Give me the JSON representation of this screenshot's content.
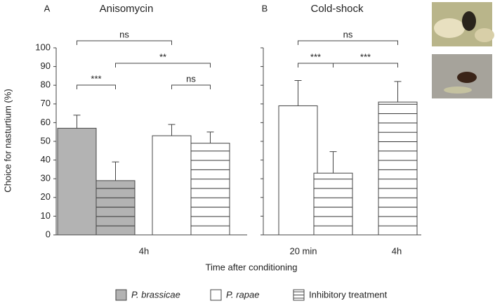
{
  "y_label": "Choice for nasturtium (%)",
  "x_label": "Time after conditioning",
  "legend": [
    {
      "label": "P. brassicae",
      "color": "#b3b3b3",
      "hatch": false
    },
    {
      "label": "P. rapae",
      "color": "#ffffff",
      "hatch": false
    },
    {
      "label": "Inhibitory treatment",
      "color": "#ffffff",
      "hatch": true
    }
  ],
  "chart_data": [
    {
      "type": "bar",
      "panel": "A",
      "title": "Anisomycin",
      "categories": [
        "4h"
      ],
      "ylim": [
        0,
        100
      ],
      "yticks": [
        0,
        10,
        20,
        30,
        40,
        50,
        60,
        70,
        80,
        90,
        100
      ],
      "series": [
        {
          "color": "#b3b3b3",
          "hatch": false,
          "values": [
            57
          ],
          "errors": [
            7
          ]
        },
        {
          "color": "#b3b3b3",
          "hatch": true,
          "values": [
            29
          ],
          "errors": [
            10
          ]
        },
        {
          "color": "#ffffff",
          "hatch": false,
          "values": [
            53
          ],
          "errors": [
            6
          ]
        },
        {
          "color": "#ffffff",
          "hatch": true,
          "values": [
            49
          ],
          "errors": [
            6
          ]
        }
      ],
      "significance": [
        "ns",
        "**",
        "***",
        "ns"
      ]
    },
    {
      "type": "bar",
      "panel": "B",
      "title": "Cold-shock",
      "categories": [
        "20 min",
        "4h"
      ],
      "ylim": [
        0,
        100
      ],
      "yticks": [
        0,
        10,
        20,
        30,
        40,
        50,
        60,
        70,
        80,
        90,
        100
      ],
      "series": [
        {
          "color": "#ffffff",
          "hatch": false,
          "values": [
            69,
            null
          ],
          "errors": [
            13.5,
            null
          ]
        },
        {
          "color": "#ffffff",
          "hatch": true,
          "values": [
            33,
            71
          ],
          "errors": [
            11.5,
            11
          ]
        }
      ],
      "significance": [
        "ns",
        "***",
        "***"
      ]
    }
  ]
}
